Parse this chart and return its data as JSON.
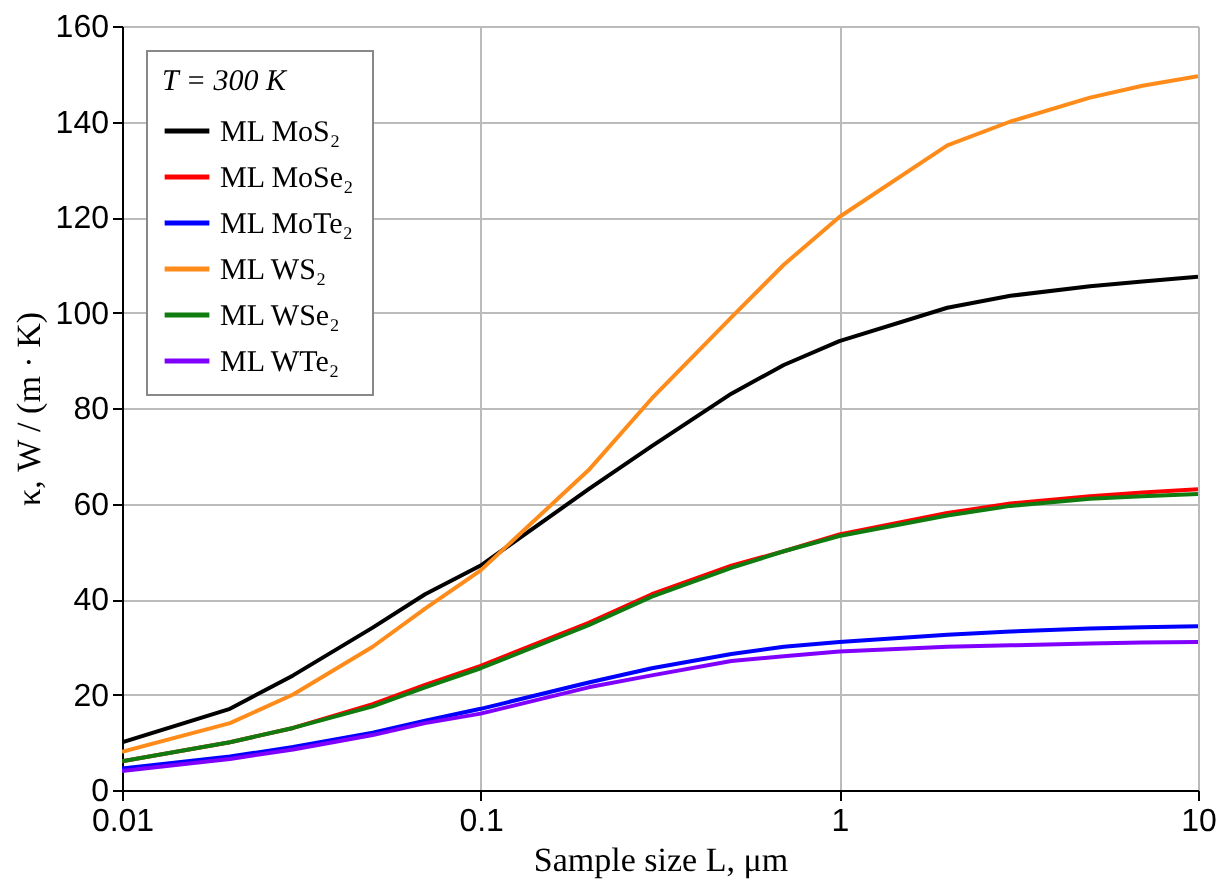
{
  "chart_data": {
    "type": "line",
    "xlabel": "Sample size L, μm",
    "ylabel": "κ, W / (m · K)",
    "legend_title": "T = 300 K",
    "log": "x",
    "grid": true,
    "legend": "top left",
    "marker": "none",
    "line_style": "solid",
    "xlim": [
      0.01,
      10
    ],
    "xticks": [
      0.01,
      0.1,
      1,
      10
    ],
    "ylim": [
      0,
      160
    ],
    "yticks": [
      0,
      20,
      40,
      60,
      80,
      100,
      120,
      140,
      160
    ],
    "x": [
      0.01,
      0.02,
      0.03,
      0.05,
      0.07,
      0.1,
      0.2,
      0.3,
      0.5,
      0.7,
      1,
      2,
      3,
      5,
      7,
      10
    ],
    "series": [
      {
        "name": "ML MoS₂",
        "color": "#000000",
        "values": [
          10,
          17,
          24,
          34,
          41,
          47,
          63,
          72,
          83,
          89,
          94,
          101,
          103.5,
          105.5,
          106.5,
          107.5
        ]
      },
      {
        "name": "ML MoSe₂",
        "color": "#ff0000",
        "values": [
          6,
          10,
          13,
          18,
          22,
          26,
          35,
          41,
          47,
          50,
          53.5,
          58,
          60,
          61.5,
          62.3,
          63
        ]
      },
      {
        "name": "ML MoTe₂",
        "color": "#0000ff",
        "values": [
          4.5,
          7,
          9,
          12,
          14.5,
          17,
          22.5,
          25.5,
          28.5,
          30,
          31,
          32.5,
          33.2,
          33.8,
          34.1,
          34.3
        ]
      },
      {
        "name": "ML WS₂",
        "color": "#ff8c1a",
        "values": [
          8,
          14,
          20,
          30,
          38,
          46,
          67,
          82,
          99,
          110,
          120,
          135,
          140,
          145,
          147.5,
          149.5
        ]
      },
      {
        "name": "ML WSe₂",
        "color": "#107c10",
        "values": [
          6,
          10,
          13,
          17.5,
          21.5,
          25.5,
          34.5,
          40.5,
          46.5,
          50,
          53.2,
          57.5,
          59.5,
          61,
          61.5,
          62
        ]
      },
      {
        "name": "ML WTe₂",
        "color": "#8000ff",
        "values": [
          4,
          6.5,
          8.5,
          11.5,
          14,
          16,
          21.5,
          24,
          27,
          28,
          29,
          30,
          30.3,
          30.7,
          30.9,
          31
        ]
      }
    ]
  }
}
